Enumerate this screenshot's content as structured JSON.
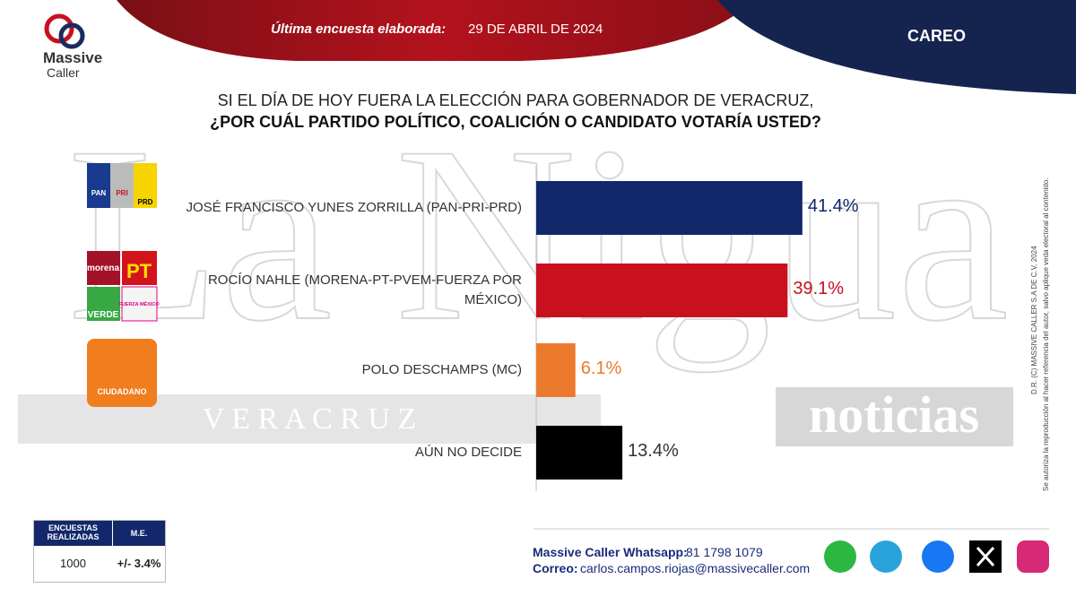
{
  "header": {
    "label": "Última encuesta elaborada:",
    "date": "29 DE ABRIL DE 2024",
    "section": "CAREO"
  },
  "brand": {
    "line1": "Massive",
    "line2": "Caller"
  },
  "chart_data": {
    "type": "bar",
    "orientation": "horizontal",
    "title": "SI EL DÍA DE HOY FUERA LA ELECCIÓN PARA GOBERNADOR DE VERACRUZ,",
    "subtitle": "¿POR CUÁL PARTIDO POLÍTICO, COALICIÓN O CANDIDATO VOTARÍA USTED?",
    "categories": [
      "JOSÉ FRANCISCO YUNES ZORRILLA (PAN-PRI-PRD)",
      "ROCÍO NAHLE (MORENA-PT-PVEM-FUERZA POR MÉXICO)",
      "POLO DESCHAMPS (MC)",
      "AÚN NO DECIDE"
    ],
    "values": [
      41.4,
      39.1,
      6.1,
      13.4
    ],
    "value_labels": [
      "41.4%",
      "39.1%",
      "6.1%",
      "13.4%"
    ],
    "colors": [
      "#12286b",
      "#c8101e",
      "#ec7a2c",
      "#000000"
    ]
  },
  "logos": [
    "PAN",
    "PRI",
    "PRD",
    "morena",
    "PT",
    "VERDE",
    "FUERZA MÉXICO",
    "CIUDADANO"
  ],
  "watermark": {
    "main": "La Nigua",
    "sub": "V E R A C R U Z",
    "tag": "noticias"
  },
  "table": {
    "headers": [
      "ENCUESTAS REALIZADAS",
      "M.E."
    ],
    "rows": [
      [
        "1000",
        "+/- 3.4%"
      ]
    ]
  },
  "footer": {
    "whatsapp_label": "Massive Caller Whatsapp:",
    "whatsapp": "81 1798 1079",
    "email_label": "Correo:",
    "email": "carlos.campos.riojas@massivecaller.com"
  },
  "legal": {
    "line1": "D.R. (C) MASSIVE CALLER S.A DE C.V. 2024",
    "line2": "Se autoriza la reproducción al hacer referencia del autor, salvo aplique veda electoral al contenido."
  }
}
